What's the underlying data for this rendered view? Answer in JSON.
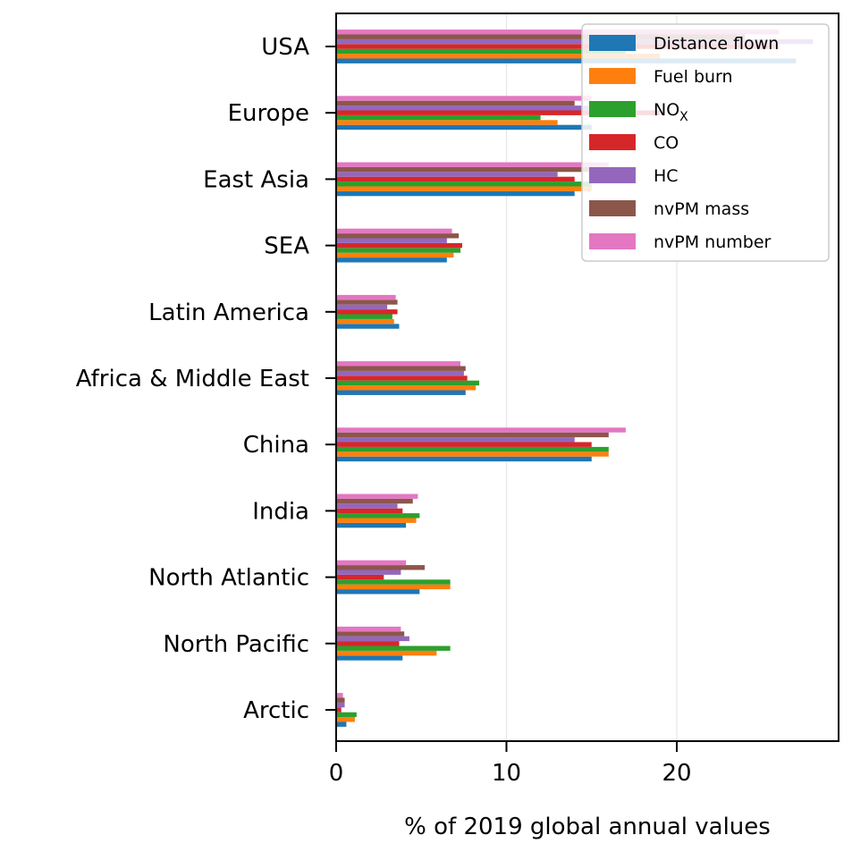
{
  "chart_data": {
    "type": "bar",
    "orientation": "horizontal",
    "xlabel": "% of 2019 global annual values",
    "ylabel": "",
    "xlim": [
      0,
      29.5
    ],
    "xticks": [
      0,
      10,
      20
    ],
    "grid": "x",
    "legend_position": "top-right",
    "categories": [
      "Arctic",
      "North Pacific",
      "North Atlantic",
      "India",
      "China",
      "Africa & Middle East",
      "Latin America",
      "SEA",
      "East Asia",
      "Europe",
      "USA"
    ],
    "series": [
      {
        "name": "Distance flown",
        "color": "#1f77b4",
        "values": [
          0.6,
          3.9,
          4.9,
          4.1,
          15.0,
          7.6,
          3.7,
          6.5,
          14.0,
          15.0,
          27.0
        ]
      },
      {
        "name": "Fuel burn",
        "color": "#ff7f0e",
        "values": [
          1.1,
          5.9,
          6.7,
          4.7,
          16.0,
          8.2,
          3.4,
          6.9,
          15.0,
          13.0,
          19.0
        ]
      },
      {
        "name": "NOX",
        "name_main": "NO",
        "name_sub": "X",
        "color": "#2ca02c",
        "values": [
          1.2,
          6.7,
          6.7,
          4.9,
          16.0,
          8.4,
          3.3,
          7.3,
          15.0,
          12.0,
          17.0
        ]
      },
      {
        "name": "CO",
        "color": "#d62728",
        "values": [
          0.3,
          3.7,
          2.8,
          3.9,
          15.0,
          7.7,
          3.6,
          7.4,
          14.0,
          19.0,
          26.0
        ]
      },
      {
        "name": "HC",
        "color": "#9467bd",
        "values": [
          0.5,
          4.3,
          3.8,
          3.6,
          14.0,
          7.5,
          3.0,
          6.5,
          13.0,
          17.0,
          28.0
        ]
      },
      {
        "name": "nvPM mass",
        "color": "#8c564b",
        "values": [
          0.5,
          4.0,
          5.2,
          4.5,
          16.0,
          7.6,
          3.6,
          7.2,
          16.0,
          14.0,
          24.0
        ]
      },
      {
        "name": "nvPM number",
        "color": "#e377c2",
        "values": [
          0.4,
          3.8,
          4.1,
          4.8,
          17.0,
          7.3,
          3.5,
          6.8,
          16.0,
          15.0,
          26.0
        ]
      }
    ]
  }
}
